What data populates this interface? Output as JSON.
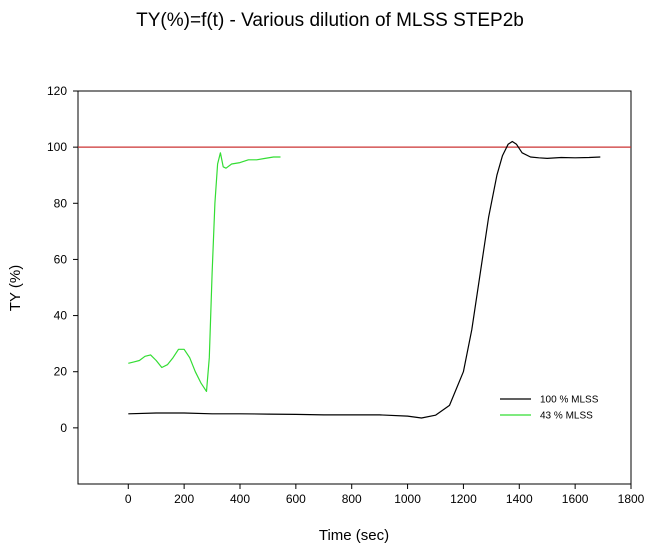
{
  "chart_data": {
    "type": "line",
    "title": "TY(%)=f(t) - Various dilution of MLSS STEP2b",
    "xlabel": "Time (sec)",
    "ylabel": "TY (%)",
    "xlim": [
      -180,
      1800
    ],
    "ylim": [
      -20,
      120
    ],
    "xticks": [
      0,
      200,
      400,
      600,
      800,
      1000,
      1200,
      1400,
      1600,
      1800
    ],
    "yticks": [
      0,
      20,
      40,
      60,
      80,
      100,
      120
    ],
    "xtick_labels": [
      "0",
      "200",
      "400",
      "600",
      "800",
      "1000",
      "1200",
      "1400",
      "1600",
      "1800"
    ],
    "ytick_labels": [
      "0",
      "20",
      "40",
      "60",
      "80",
      "100",
      "120"
    ],
    "grid": false,
    "legend_position": "bottom-right",
    "reference_line": {
      "y": 100,
      "color": "#cc3333"
    },
    "series": [
      {
        "name": "100 % MLSS",
        "color": "#000000",
        "x": [
          0,
          100,
          200,
          300,
          400,
          500,
          600,
          700,
          800,
          900,
          1000,
          1050,
          1100,
          1150,
          1200,
          1230,
          1260,
          1290,
          1320,
          1340,
          1360,
          1375,
          1390,
          1410,
          1440,
          1470,
          1500,
          1550,
          1600,
          1650,
          1690
        ],
        "y": [
          5,
          5.3,
          5.3,
          5,
          5,
          4.9,
          4.8,
          4.6,
          4.6,
          4.6,
          4.2,
          3.5,
          4.5,
          8,
          20,
          35,
          55,
          75,
          90,
          97,
          101,
          102,
          101,
          98,
          96.5,
          96.2,
          96,
          96.3,
          96.2,
          96.3,
          96.5
        ]
      },
      {
        "name": "43 % MLSS",
        "color": "#33dd33",
        "x": [
          0,
          20,
          40,
          60,
          80,
          100,
          120,
          140,
          160,
          180,
          200,
          220,
          240,
          260,
          280,
          290,
          300,
          310,
          320,
          330,
          340,
          350,
          370,
          400,
          430,
          460,
          490,
          520,
          545
        ],
        "y": [
          23,
          23.5,
          24,
          25.5,
          26,
          24,
          21.5,
          22.5,
          25,
          28,
          28,
          25,
          20,
          16,
          13,
          25,
          55,
          80,
          94,
          98,
          93,
          92.5,
          94,
          94.5,
          95.5,
          95.5,
          96,
          96.5,
          96.5
        ]
      }
    ]
  }
}
